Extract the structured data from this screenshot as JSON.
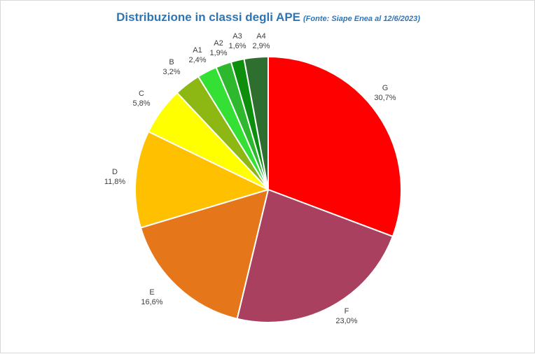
{
  "chart_data": {
    "type": "pie",
    "title": "Distribuzione in classi degli APE",
    "subtitle": "(Fonte: Siape Enea al 12/6/2023)",
    "start_angle_deg": 0,
    "direction": "clockwise",
    "slices": [
      {
        "label": "G",
        "value": 30.7,
        "value_text": "30,7%",
        "color": "#ff0000"
      },
      {
        "label": "F",
        "value": 23.0,
        "value_text": "23,0%",
        "color": "#aa4060"
      },
      {
        "label": "E",
        "value": 16.6,
        "value_text": "16,6%",
        "color": "#e6761a"
      },
      {
        "label": "D",
        "value": 11.8,
        "value_text": "11,8%",
        "color": "#ffc000"
      },
      {
        "label": "C",
        "value": 5.8,
        "value_text": "5,8%",
        "color": "#ffff00"
      },
      {
        "label": "B",
        "value": 3.2,
        "value_text": "3,2%",
        "color": "#8db814"
      },
      {
        "label": "A1",
        "value": 2.4,
        "value_text": "2,4%",
        "color": "#33e033"
      },
      {
        "label": "A2",
        "value": 1.9,
        "value_text": "1,9%",
        "color": "#2eb82e"
      },
      {
        "label": "A3",
        "value": 1.6,
        "value_text": "1,6%",
        "color": "#0d8f0d"
      },
      {
        "label": "A4",
        "value": 2.9,
        "value_text": "2,9%",
        "color": "#2e6e2e"
      }
    ]
  }
}
